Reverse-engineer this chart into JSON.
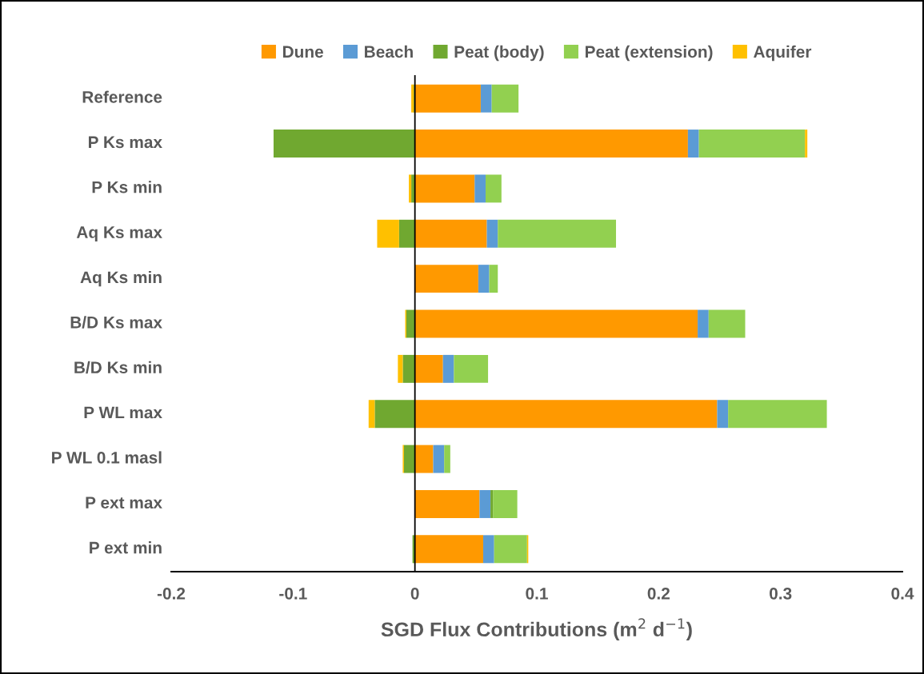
{
  "chart_data": {
    "type": "bar",
    "orientation": "horizontal",
    "stacked": true,
    "xlabel": "SGD Flux Contributions (m$^{2}$ d$^{−1}$)",
    "categories": [
      "Reference",
      "P Ks max",
      "P Ks min",
      "Aq Ks max",
      "Aq Ks min",
      "B/D Ks max",
      "B/D Ks min",
      "P WL max",
      "P WL 0.1 masl",
      "P ext max",
      "P ext min"
    ],
    "series": [
      {
        "name": "Dune",
        "color": "#ff9900",
        "values": [
          0.054,
          0.224,
          0.049,
          0.059,
          0.052,
          0.232,
          0.023,
          0.248,
          0.015,
          0.053,
          0.056
        ]
      },
      {
        "name": "Beach",
        "color": "#5b9bd5",
        "values": [
          0.009,
          0.009,
          0.009,
          0.009,
          0.009,
          0.009,
          0.009,
          0.009,
          0.009,
          0.009,
          0.009
        ]
      },
      {
        "name": "Peat (body)",
        "color": "#70a830",
        "values": [
          -0.001,
          -0.116,
          -0.003,
          -0.013,
          0,
          -0.007,
          -0.01,
          -0.033,
          -0.009,
          0.002,
          -0.002
        ]
      },
      {
        "name": "Peat (extension)",
        "color": "#92d050",
        "values": [
          0.022,
          0.087,
          0.013,
          0.097,
          0.007,
          0.03,
          0.028,
          0.081,
          0.005,
          0.02,
          0.027
        ]
      },
      {
        "name": "Aquifer",
        "color": "#ffc000",
        "values": [
          -0.002,
          0.002,
          -0.002,
          -0.018,
          0,
          -0.001,
          -0.004,
          -0.005,
          -0.001,
          0,
          0.001
        ]
      }
    ],
    "xlim": [
      -0.2,
      0.4
    ],
    "xticks": [
      -0.2,
      -0.1,
      0,
      0.1,
      0.2,
      0.3,
      0.4
    ],
    "legend": "top"
  }
}
